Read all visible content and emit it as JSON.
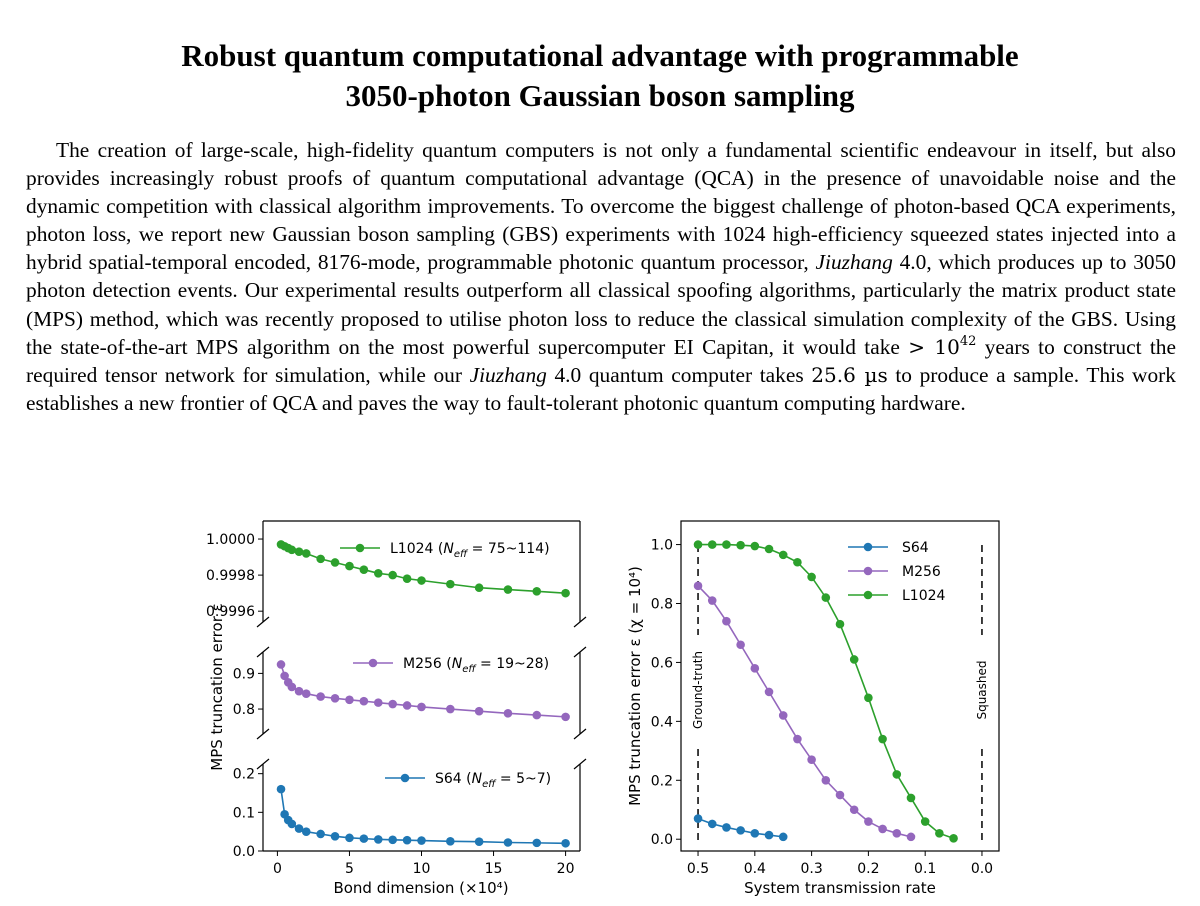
{
  "paper": {
    "title_line1": "Robust quantum computational advantage with programmable",
    "title_line2": "3050-photon Gaussian boson sampling",
    "abstract": {
      "s1": "The creation of large-scale, high-fidelity quantum computers is not only a fundamental scientific endeavour in itself, but also provides increasingly robust proofs of quantum computational advantage (QCA) in the presence of unavoidable noise and the dynamic competition with classical algorithm improvements. To overcome the biggest challenge of photon-based QCA experiments, photon loss, we report new Gaussian boson sampling (GBS) experiments with 1024 high-efficiency squeezed states injected into a hybrid spatial-temporal encoded, 8176-mode, programmable photonic quantum processor,",
      "jiuzhang": "Jiuzhang",
      "s2": "4.0, which produces up to 3050 photon detection events. Our experimental results outperform all classical spoofing algorithms, particularly the matrix product state (MPS) method, which was recently proposed to utilise photon loss to reduce the classical simulation complexity of the GBS. Using the state-of-the-art MPS algorithm on the most powerful supercomputer EI Capitan, it would take",
      "gt": "> 10",
      "exp": "42",
      "s3": "years to construct the required tensor network for simulation, while our",
      "s4": "4.0 quantum computer takes",
      "time": "25.6 µs",
      "s5": "to produce a sample. This work establishes a new frontier of QCA and paves the way to fault-tolerant photonic quantum computing hardware."
    }
  },
  "colors": {
    "blue": "#1f77b4",
    "purple": "#9467bd",
    "green": "#2ca02c"
  },
  "chart_data": [
    {
      "type": "line",
      "xlabel": "Bond dimension (×10⁴)",
      "ylabel": "MPS truncation error ε",
      "xlim": [
        -1,
        21
      ],
      "x_ticks": [
        "0",
        "5",
        "10",
        "15",
        "20"
      ],
      "panels": [
        {
          "name": "L1024",
          "legend": "L1024 (N_eff = 75~114)",
          "legend_main": "L1024 (",
          "legend_sub": "eff",
          "legend_tail": " = 75~114)",
          "ylim": [
            0.99954,
            1.0001
          ],
          "yticks": [
            "0.9996",
            "0.9998",
            "1.0000"
          ],
          "x": [
            0.25,
            0.5,
            0.75,
            1,
            1.5,
            2,
            3,
            4,
            5,
            6,
            7,
            8,
            9,
            10,
            12,
            14,
            16,
            18,
            20
          ],
          "y": [
            0.99997,
            0.99996,
            0.99995,
            0.99994,
            0.99993,
            0.99992,
            0.99989,
            0.99987,
            0.99985,
            0.99983,
            0.99981,
            0.9998,
            0.99978,
            0.99977,
            0.99975,
            0.99973,
            0.99972,
            0.99971,
            0.9997
          ]
        },
        {
          "name": "M256",
          "legend": "M256 (N_eff = 19~28)",
          "legend_main": "M256 (",
          "legend_sub": "eff",
          "legend_tail": " = 19~28)",
          "ylim": [
            0.73,
            0.96
          ],
          "yticks": [
            "0.8",
            "0.9"
          ],
          "x": [
            0.25,
            0.5,
            0.75,
            1,
            1.5,
            2,
            3,
            4,
            5,
            6,
            7,
            8,
            9,
            10,
            12,
            14,
            16,
            18,
            20
          ],
          "y": [
            0.925,
            0.893,
            0.875,
            0.862,
            0.85,
            0.843,
            0.835,
            0.83,
            0.826,
            0.822,
            0.818,
            0.814,
            0.81,
            0.806,
            0.8,
            0.794,
            0.788,
            0.783,
            0.778
          ]
        },
        {
          "name": "S64",
          "legend": "S64 (N_eff = 5~7)",
          "legend_main": "S64 (",
          "legend_sub": "eff",
          "legend_tail": " = 5~7)",
          "ylim": [
            0,
            0.225
          ],
          "yticks": [
            "0.0",
            "0.1",
            "0.2"
          ],
          "x": [
            0.25,
            0.5,
            0.75,
            1,
            1.5,
            2,
            3,
            4,
            5,
            6,
            7,
            8,
            9,
            10,
            12,
            14,
            16,
            18,
            20
          ],
          "y": [
            0.16,
            0.095,
            0.08,
            0.07,
            0.058,
            0.05,
            0.044,
            0.038,
            0.034,
            0.032,
            0.03,
            0.029,
            0.028,
            0.027,
            0.025,
            0.024,
            0.022,
            0.021,
            0.02
          ]
        }
      ]
    },
    {
      "type": "line",
      "xlabel": "System transmission rate",
      "ylabel": "MPS truncation error ε (χ = 10⁴)",
      "xlim": [
        0.53,
        -0.03
      ],
      "ylim": [
        -0.04,
        1.08
      ],
      "x_ticks": [
        "0.5",
        "0.4",
        "0.3",
        "0.2",
        "0.1",
        "0.0"
      ],
      "y_ticks": [
        "0.0",
        "0.2",
        "0.4",
        "0.6",
        "0.8",
        "1.0"
      ],
      "vlines": [
        {
          "x": 0.5,
          "label": "Ground-truth"
        },
        {
          "x": 0.0,
          "label": "Squashed"
        }
      ],
      "legend": [
        "S64",
        "M256",
        "L1024"
      ],
      "series": [
        {
          "name": "S64",
          "x": [
            0.5,
            0.475,
            0.45,
            0.425,
            0.4,
            0.375,
            0.35
          ],
          "y": [
            0.07,
            0.052,
            0.04,
            0.03,
            0.02,
            0.014,
            0.008
          ]
        },
        {
          "name": "M256",
          "x": [
            0.5,
            0.475,
            0.45,
            0.425,
            0.4,
            0.375,
            0.35,
            0.325,
            0.3,
            0.275,
            0.25,
            0.225,
            0.2,
            0.175,
            0.15,
            0.125
          ],
          "y": [
            0.86,
            0.81,
            0.74,
            0.66,
            0.58,
            0.5,
            0.42,
            0.34,
            0.27,
            0.2,
            0.15,
            0.1,
            0.06,
            0.035,
            0.02,
            0.008
          ]
        },
        {
          "name": "L1024",
          "x": [
            0.5,
            0.475,
            0.45,
            0.425,
            0.4,
            0.375,
            0.35,
            0.325,
            0.3,
            0.275,
            0.25,
            0.225,
            0.2,
            0.175,
            0.15,
            0.125,
            0.1,
            0.075,
            0.05
          ],
          "y": [
            1.0,
            1.0,
            1.0,
            0.998,
            0.995,
            0.985,
            0.965,
            0.94,
            0.89,
            0.82,
            0.73,
            0.61,
            0.48,
            0.34,
            0.22,
            0.14,
            0.06,
            0.02,
            0.003
          ]
        }
      ]
    }
  ]
}
